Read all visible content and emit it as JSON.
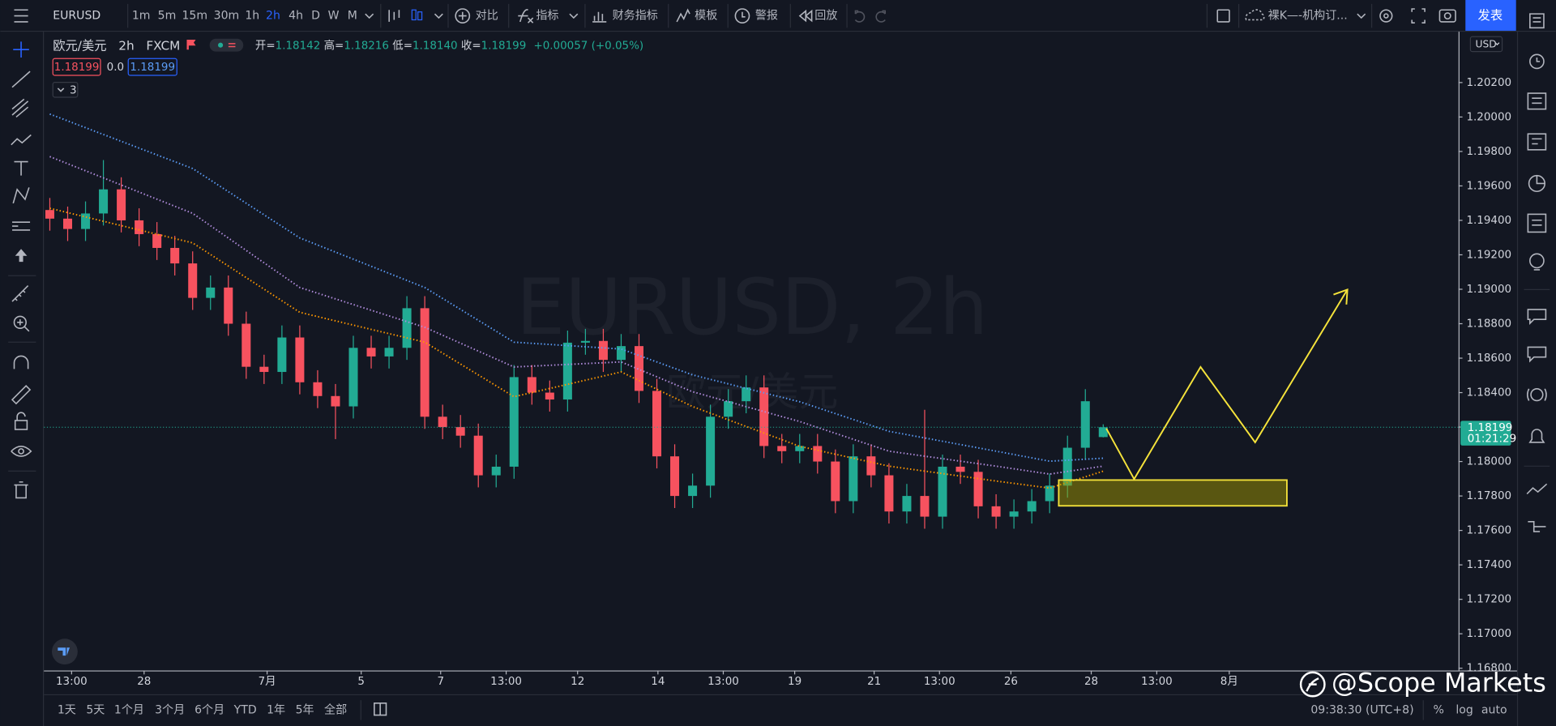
{
  "top_bar": {
    "symbol": "EURUSD",
    "intervals": [
      "1m",
      "5m",
      "15m",
      "30m",
      "1h",
      "2h",
      "4h",
      "D",
      "W",
      "M"
    ],
    "active_interval": 5,
    "buttons": [
      "对比",
      "指标",
      "财务指标",
      "模板",
      "警报",
      "回放"
    ],
    "layout": "裸K—-机构订...",
    "publish": "发表"
  },
  "bottom_bar": {
    "ranges": [
      "1天",
      "5天",
      "1个月",
      "3个月",
      "6个月",
      "YTD",
      "1年",
      "5年",
      "全部"
    ],
    "clock": "09:38:30 (UTC+8)",
    "percent": "%",
    "log": "log",
    "auto": "auto"
  },
  "watermark_brand": "@Scope Markets",
  "chart_data": {
    "type": "candlestick",
    "title": "欧元/美元",
    "interval": "2h",
    "source": "FXCM",
    "watermark": "EURUSD, 2h",
    "watermark_sub": "欧元/美元",
    "ohlc_legend": {
      "open_label": "开=",
      "open": "1.18142",
      "high_label": "高=",
      "high": "1.18216",
      "low_label": "低=",
      "low": "1.18140",
      "close_label": "收=",
      "close": "1.18199",
      "change": "+0.00057 (+0.05%)"
    },
    "bid": "1.18199",
    "spread": "0.0",
    "ask": "1.18199",
    "indicators_count": "3",
    "currency": "USD",
    "last_price_label": "1.18199",
    "countdown": "01:21:29",
    "up_color": "#22ab94",
    "down_color": "#f7525f",
    "open": [
      1.1946,
      1.1941,
      1.1935,
      1.1944,
      1.1958,
      1.194,
      1.1932,
      1.1924,
      1.1915,
      1.1895,
      1.1901,
      1.188,
      1.1855,
      1.1852,
      1.1872,
      1.1846,
      1.1838,
      1.1832,
      1.1866,
      1.1861,
      1.1866,
      1.1889,
      1.1826,
      1.182,
      1.1815,
      1.1792,
      1.1797,
      1.1849,
      1.184,
      1.1836,
      1.1869,
      1.187,
      1.1859,
      1.1867,
      1.1841,
      1.1803,
      1.178,
      1.1786,
      1.1826,
      1.1835,
      1.1843,
      1.1809,
      1.1806,
      1.1809,
      1.18,
      1.1777,
      1.1803,
      1.1792,
      1.1771,
      1.178,
      1.1768,
      1.1797,
      1.1794,
      1.1774,
      1.1768,
      1.1771,
      1.1777,
      1.1786,
      1.1808,
      1.18142
    ],
    "high": [
      1.1953,
      1.1948,
      1.1951,
      1.1975,
      1.1965,
      1.1947,
      1.1939,
      1.1931,
      1.1922,
      1.1908,
      1.1908,
      1.1887,
      1.1862,
      1.1879,
      1.1879,
      1.1853,
      1.1845,
      1.1873,
      1.1873,
      1.1873,
      1.1896,
      1.1896,
      1.1833,
      1.1827,
      1.1822,
      1.1804,
      1.1856,
      1.1856,
      1.1847,
      1.1876,
      1.1877,
      1.1877,
      1.1874,
      1.1874,
      1.1848,
      1.181,
      1.1793,
      1.1833,
      1.1842,
      1.185,
      1.185,
      1.1816,
      1.1816,
      1.1816,
      1.1807,
      1.181,
      1.181,
      1.1799,
      1.1787,
      1.183,
      1.1804,
      1.1804,
      1.1801,
      1.1781,
      1.1778,
      1.1784,
      1.1793,
      1.1815,
      1.1842,
      1.18216
    ],
    "low": [
      1.1934,
      1.1928,
      1.1928,
      1.1937,
      1.1933,
      1.1925,
      1.1917,
      1.1908,
      1.1888,
      1.1888,
      1.1873,
      1.1848,
      1.1845,
      1.1845,
      1.1839,
      1.1831,
      1.1813,
      1.1825,
      1.1854,
      1.1854,
      1.1859,
      1.1819,
      1.1813,
      1.1808,
      1.1785,
      1.1785,
      1.179,
      1.1833,
      1.1829,
      1.1829,
      1.1862,
      1.1852,
      1.1852,
      1.1834,
      1.1796,
      1.1773,
      1.1773,
      1.1779,
      1.1819,
      1.1828,
      1.1802,
      1.1799,
      1.1799,
      1.1793,
      1.177,
      1.177,
      1.1785,
      1.1764,
      1.1764,
      1.1761,
      1.1761,
      1.1787,
      1.1767,
      1.1761,
      1.1761,
      1.1764,
      1.177,
      1.1779,
      1.1801,
      1.1814
    ],
    "close": [
      1.1941,
      1.1935,
      1.1944,
      1.1958,
      1.194,
      1.1932,
      1.1924,
      1.1915,
      1.1895,
      1.1901,
      1.188,
      1.1855,
      1.1852,
      1.1872,
      1.1846,
      1.1838,
      1.1832,
      1.1866,
      1.1861,
      1.1866,
      1.1889,
      1.1826,
      1.182,
      1.1815,
      1.1792,
      1.1797,
      1.1849,
      1.184,
      1.1836,
      1.1869,
      1.187,
      1.1859,
      1.1867,
      1.1841,
      1.1803,
      1.178,
      1.1786,
      1.1826,
      1.1835,
      1.1843,
      1.1809,
      1.1806,
      1.1809,
      1.18,
      1.1777,
      1.1803,
      1.1792,
      1.1771,
      1.178,
      1.1768,
      1.1797,
      1.1794,
      1.1774,
      1.1768,
      1.1771,
      1.1777,
      1.1786,
      1.1808,
      1.1835,
      1.18199
    ],
    "overlays": [
      {
        "color": "#5b9cf6",
        "x": [
          0,
          8,
          14,
          21,
          26,
          32,
          36,
          42,
          47,
          53,
          56,
          59
        ],
        "values": [
          1.20017,
          1.19701,
          1.19298,
          1.1901,
          1.18693,
          1.18653,
          1.18503,
          1.18347,
          1.18175,
          1.1806,
          1.18002,
          1.18019
        ]
      },
      {
        "color": "#b28dde",
        "x": [
          0,
          8,
          14,
          21,
          26,
          32,
          36,
          42,
          47,
          53,
          56,
          59
        ],
        "values": [
          1.1977,
          1.19441,
          1.1901,
          1.18779,
          1.18549,
          1.18578,
          1.18405,
          1.18232,
          1.1806,
          1.17973,
          1.17927,
          1.17973
        ]
      },
      {
        "color": "#ff9800",
        "x": [
          0,
          8,
          14,
          21,
          26,
          32,
          36,
          42,
          47,
          53,
          56,
          59
        ],
        "values": [
          1.1947,
          1.19269,
          1.18866,
          1.18693,
          1.18376,
          1.1852,
          1.18319,
          1.18088,
          1.17973,
          1.17887,
          1.17846,
          1.17944
        ]
      }
    ],
    "xlim": [
      -0.33,
      78.9
    ],
    "xticks": [
      {
        "value": 1.22,
        "label": "13:00"
      },
      {
        "value": 5.28,
        "label": "28"
      },
      {
        "value": 12.17,
        "label": "7月"
      },
      {
        "value": 17.44,
        "label": "5"
      },
      {
        "value": 21.89,
        "label": "7"
      },
      {
        "value": 25.56,
        "label": "13:00"
      },
      {
        "value": 29.56,
        "label": "12"
      },
      {
        "value": 34.06,
        "label": "14"
      },
      {
        "value": 37.72,
        "label": "13:00"
      },
      {
        "value": 41.72,
        "label": "19"
      },
      {
        "value": 46.17,
        "label": "21"
      },
      {
        "value": 49.83,
        "label": "13:00"
      },
      {
        "value": 53.83,
        "label": "26"
      },
      {
        "value": 58.33,
        "label": "28"
      },
      {
        "value": 62,
        "label": "13:00"
      },
      {
        "value": 66.06,
        "label": "8月"
      }
    ],
    "ylim": [
      1.16787,
      1.20495
    ],
    "yticks": [
      {
        "value": 1.168,
        "label": "1.16800"
      },
      {
        "value": 1.17,
        "label": "1.17000"
      },
      {
        "value": 1.172,
        "label": "1.17200"
      },
      {
        "value": 1.174,
        "label": "1.17400"
      },
      {
        "value": 1.176,
        "label": "1.17600"
      },
      {
        "value": 1.178,
        "label": "1.17800"
      },
      {
        "value": 1.18,
        "label": "1.18000"
      },
      {
        "value": 1.182,
        "label": "1.18200"
      },
      {
        "value": 1.184,
        "label": "1.18400"
      },
      {
        "value": 1.186,
        "label": "1.18600"
      },
      {
        "value": 1.188,
        "label": "1.18800"
      },
      {
        "value": 1.19,
        "label": "1.19000"
      },
      {
        "value": 1.192,
        "label": "1.19200"
      },
      {
        "value": 1.194,
        "label": "1.19400"
      },
      {
        "value": 1.196,
        "label": "1.19600"
      },
      {
        "value": 1.198,
        "label": "1.19800"
      },
      {
        "value": 1.2,
        "label": "1.20000"
      },
      {
        "value": 1.202,
        "label": "1.20200"
      }
    ],
    "grid": false
  }
}
